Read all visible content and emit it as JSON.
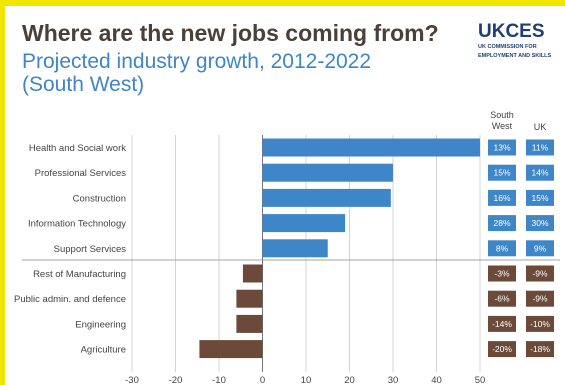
{
  "header": {
    "title": "Where are the new jobs coming from?",
    "subtitle": "Projected industry growth, 2012-2022 (South West)"
  },
  "logo": {
    "wordmark": "UKCES",
    "line1": "UK COMMISSION FOR",
    "line2": "EMPLOYMENT AND SKILLS"
  },
  "columns": {
    "south_west": "South West",
    "uk": "UK"
  },
  "colors": {
    "growth": "#3f86c9",
    "decline": "#6b4a3a"
  },
  "chart_data": {
    "type": "bar",
    "orientation": "horizontal",
    "categories": [
      "Health and Social work",
      "Professional Services",
      "Construction",
      "Information Technology",
      "Support Services",
      "Rest of Manufacturing",
      "Public admin. and defence",
      "Engineering",
      "Agriculture"
    ],
    "values": [
      50,
      30,
      29.5,
      19,
      15,
      -4.5,
      -6,
      -6,
      -14.5
    ],
    "south_west_pct": [
      "13%",
      "15%",
      "16%",
      "28%",
      "8%",
      "-3%",
      "-6%",
      "-14%",
      "-20%"
    ],
    "uk_pct": [
      "11%",
      "14%",
      "15%",
      "30%",
      "9%",
      "-9%",
      "-9%",
      "-10%",
      "-18%"
    ],
    "xlim": [
      -30,
      50
    ],
    "xticks": [
      -30,
      -20,
      -10,
      0,
      10,
      20,
      30,
      40,
      50
    ],
    "grid": true,
    "title": "Where are the new jobs coming from?",
    "subtitle": "Projected industry growth, 2012-2022 (South West)",
    "xlabel": "",
    "ylabel": ""
  }
}
